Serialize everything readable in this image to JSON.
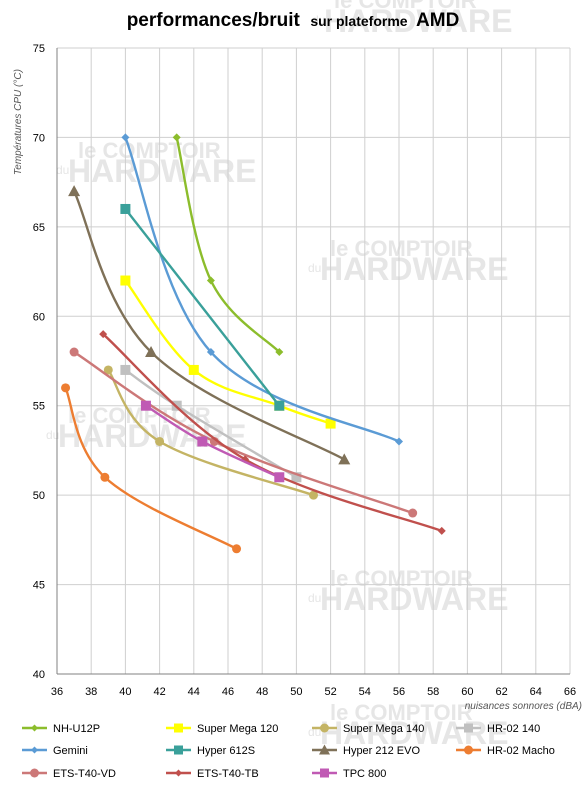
{
  "chart_data": {
    "type": "line",
    "title": "performances/bruit",
    "subtitle": "sur plateforme",
    "title_suffix": "AMD",
    "xlabel": "nuisances sonnores (dBA)",
    "ylabel": "Températures  CPU (°C)",
    "xlim": [
      36,
      66
    ],
    "ylim": [
      40,
      75
    ],
    "x_ticks": [
      36,
      38,
      40,
      42,
      44,
      46,
      48,
      50,
      52,
      54,
      56,
      58,
      60,
      62,
      64,
      66
    ],
    "y_ticks": [
      40,
      45,
      50,
      55,
      60,
      65,
      70,
      75
    ],
    "grid": "horizontal and vertical",
    "legend_placement": "bottom",
    "watermark": [
      "le COMPTOIR",
      "du",
      "HARDWARE"
    ],
    "series": [
      {
        "name": "NH-U12P",
        "color": "#8cbd2c",
        "marker": "diamond",
        "points": [
          [
            43,
            70
          ],
          [
            45,
            62
          ],
          [
            49,
            58
          ]
        ]
      },
      {
        "name": "Super Mega 120",
        "color": "#ffff00",
        "marker": "square",
        "points": [
          [
            40,
            62
          ],
          [
            44,
            57
          ],
          [
            49,
            55
          ],
          [
            52,
            54
          ]
        ]
      },
      {
        "name": "Super Mega 140",
        "color": "#c4b464",
        "marker": "circle",
        "points": [
          [
            39,
            57
          ],
          [
            42,
            53
          ],
          [
            51,
            50
          ]
        ]
      },
      {
        "name": "HR-02 140",
        "color": "#c0c0c0",
        "marker": "square",
        "points": [
          [
            40,
            57
          ],
          [
            43,
            55
          ],
          [
            50,
            51
          ]
        ]
      },
      {
        "name": "Gemini",
        "color": "#5b9bd5",
        "marker": "diamond",
        "points": [
          [
            40,
            70
          ],
          [
            45,
            58
          ],
          [
            56,
            53
          ]
        ]
      },
      {
        "name": "Hyper 612S",
        "color": "#3aa09a",
        "marker": "square",
        "points": [
          [
            40,
            66
          ],
          [
            49,
            55
          ]
        ]
      },
      {
        "name": "Hyper 212 EVO",
        "color": "#7f7158",
        "marker": "triangle",
        "points": [
          [
            37,
            67
          ],
          [
            41.5,
            58
          ],
          [
            52.8,
            52
          ]
        ]
      },
      {
        "name": "HR-02 Macho",
        "color": "#ed7d31",
        "marker": "circle",
        "points": [
          [
            36.5,
            56
          ],
          [
            38.8,
            51
          ],
          [
            46.5,
            47
          ]
        ]
      },
      {
        "name": "ETS-T40-VD",
        "color": "#cc7878",
        "marker": "circle",
        "points": [
          [
            37,
            58
          ],
          [
            45.2,
            53
          ],
          [
            56.8,
            49
          ]
        ]
      },
      {
        "name": "ETS-T40-TB",
        "color": "#c0504d",
        "marker": "diamond",
        "points": [
          [
            38.7,
            59
          ],
          [
            47,
            52
          ],
          [
            58.5,
            48
          ]
        ]
      },
      {
        "name": "TPC 800",
        "color": "#c05ab4",
        "marker": "square",
        "points": [
          [
            41.2,
            55
          ],
          [
            44.5,
            53
          ],
          [
            49,
            51
          ]
        ]
      }
    ]
  }
}
